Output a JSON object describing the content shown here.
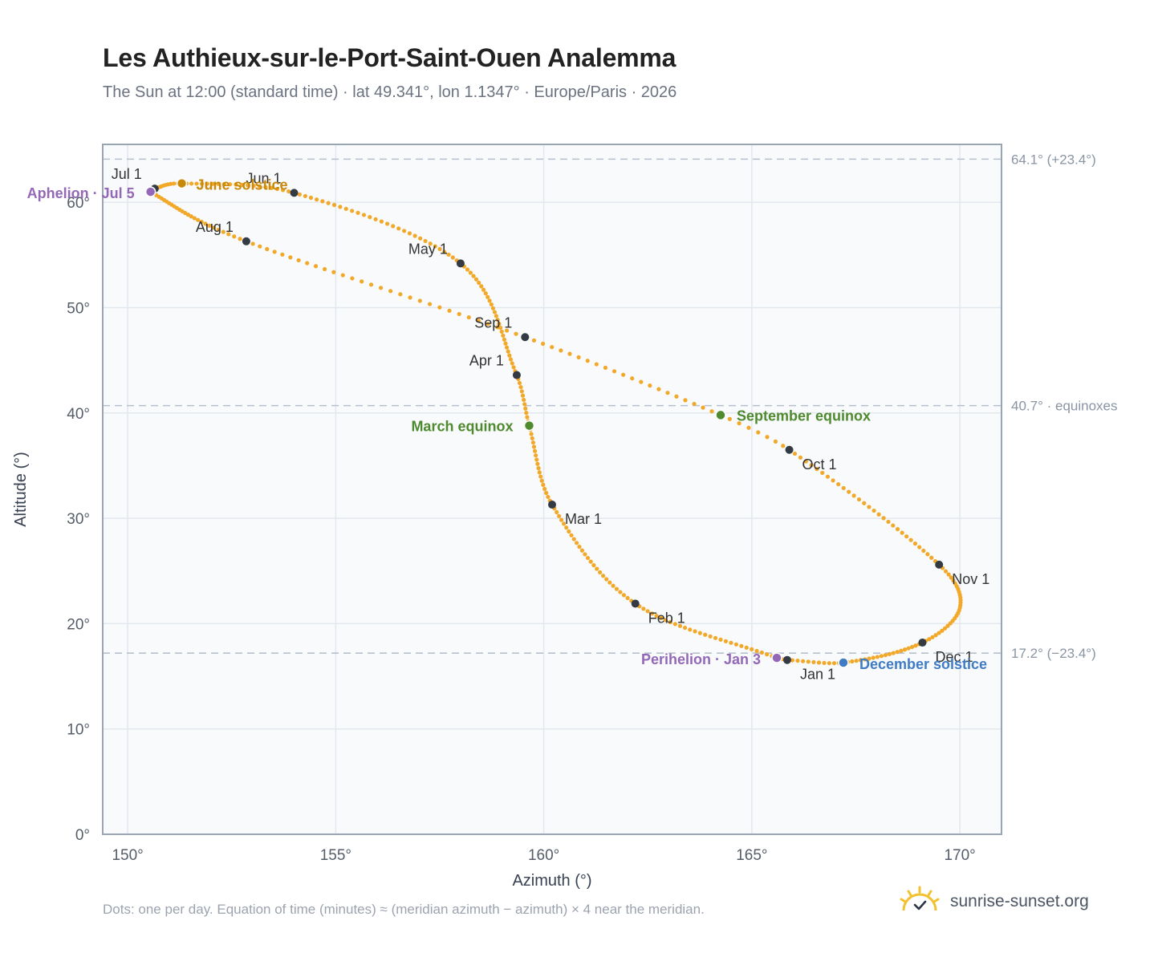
{
  "header": {
    "title": "Les Authieux-sur-le-Port-Saint-Ouen Analemma",
    "subtitle": "The Sun at 12:00 (standard time) · lat 49.341°, lon 1.1347° · Europe/Paris · 2026"
  },
  "footer": {
    "note": "Dots: one per day. Equation of time (minutes) ≈ (meridian azimuth − azimuth) × 4 near the meridian.",
    "brand": "sunrise-sunset.org",
    "brand_icon": "sun-logo-icon"
  },
  "colors": {
    "curve": "#f2a828",
    "month_dot": "#333a44",
    "june": "#c98a0c",
    "equinox": "#4f8a2f",
    "december": "#3f7cc4",
    "apsis": "#9368b7",
    "ref_line": "#b5c0cf",
    "frame": "#9aa5b4",
    "plot_bg": "#f8fafc"
  },
  "chart_data": {
    "type": "scatter",
    "xlabel": "Azimuth (°)",
    "ylabel": "Altitude (°)",
    "xlim": [
      149.4,
      171.0
    ],
    "ylim": [
      0,
      65.5
    ],
    "xticks": [
      150,
      155,
      160,
      165,
      170
    ],
    "yticks": [
      0,
      10,
      20,
      30,
      40,
      50,
      60
    ],
    "xtick_labels": [
      "150°",
      "155°",
      "160°",
      "165°",
      "170°"
    ],
    "ytick_labels": [
      "0°",
      "10°",
      "20°",
      "30°",
      "40°",
      "50°",
      "60°"
    ],
    "grid": true,
    "reference_lines": [
      {
        "y": 64.1,
        "label": "64.1° (+23.4°)"
      },
      {
        "y": 40.7,
        "label": "40.7° · equinoxes"
      },
      {
        "y": 17.2,
        "label": "17.2° (−23.4°)"
      }
    ],
    "month_points": [
      {
        "label": "Jan 1",
        "azimuth": 165.85,
        "altitude": 16.55
      },
      {
        "label": "Feb 1",
        "azimuth": 162.2,
        "altitude": 21.9
      },
      {
        "label": "Mar 1",
        "azimuth": 160.2,
        "altitude": 31.3
      },
      {
        "label": "Apr 1",
        "azimuth": 159.35,
        "altitude": 43.6
      },
      {
        "label": "May 1",
        "azimuth": 158.0,
        "altitude": 54.2
      },
      {
        "label": "Jun 1",
        "azimuth": 154.0,
        "altitude": 60.9
      },
      {
        "label": "Jul 1",
        "azimuth": 150.65,
        "altitude": 61.3
      },
      {
        "label": "Aug 1",
        "azimuth": 152.85,
        "altitude": 56.3
      },
      {
        "label": "Sep 1",
        "azimuth": 159.55,
        "altitude": 47.2
      },
      {
        "label": "Oct 1",
        "azimuth": 165.9,
        "altitude": 36.5
      },
      {
        "label": "Nov 1",
        "azimuth": 169.5,
        "altitude": 25.6
      },
      {
        "label": "Dec 1",
        "azimuth": 169.1,
        "altitude": 18.2
      }
    ],
    "events": [
      {
        "label": "June solstice",
        "azimuth": 151.3,
        "altitude": 61.8,
        "color_key": "june"
      },
      {
        "label": "March equinox",
        "azimuth": 159.65,
        "altitude": 38.8,
        "color_key": "equinox"
      },
      {
        "label": "September equinox",
        "azimuth": 164.25,
        "altitude": 39.8,
        "color_key": "equinox"
      },
      {
        "label": "December solstice",
        "azimuth": 167.2,
        "altitude": 16.3,
        "color_key": "december"
      },
      {
        "label": "Aphelion · Jul 5",
        "azimuth": 150.55,
        "altitude": 61.0,
        "color_key": "apsis"
      },
      {
        "label": "Perihelion · Jan 3",
        "azimuth": 165.6,
        "altitude": 16.75,
        "color_key": "apsis"
      }
    ],
    "curve_anchors": [
      {
        "day": 1,
        "azimuth": 165.85,
        "altitude": 16.55
      },
      {
        "day": 3,
        "azimuth": 165.6,
        "altitude": 16.75
      },
      {
        "day": 32,
        "azimuth": 162.2,
        "altitude": 21.9
      },
      {
        "day": 60,
        "azimuth": 160.2,
        "altitude": 31.3
      },
      {
        "day": 79,
        "azimuth": 159.65,
        "altitude": 38.8
      },
      {
        "day": 91,
        "azimuth": 159.35,
        "altitude": 43.6
      },
      {
        "day": 121,
        "azimuth": 158.0,
        "altitude": 54.2
      },
      {
        "day": 152,
        "azimuth": 154.0,
        "altitude": 60.9
      },
      {
        "day": 172,
        "azimuth": 151.3,
        "altitude": 61.8
      },
      {
        "day": 182,
        "azimuth": 150.65,
        "altitude": 61.3
      },
      {
        "day": 186,
        "azimuth": 150.55,
        "altitude": 61.0
      },
      {
        "day": 213,
        "azimuth": 152.85,
        "altitude": 56.3
      },
      {
        "day": 244,
        "azimuth": 159.55,
        "altitude": 47.2
      },
      {
        "day": 266,
        "azimuth": 164.25,
        "altitude": 39.8
      },
      {
        "day": 274,
        "azimuth": 165.9,
        "altitude": 36.5
      },
      {
        "day": 305,
        "azimuth": 169.5,
        "altitude": 25.6
      },
      {
        "day": 320,
        "azimuth": 170.0,
        "altitude": 21.5
      },
      {
        "day": 335,
        "azimuth": 169.1,
        "altitude": 18.2
      },
      {
        "day": 355,
        "azimuth": 167.2,
        "altitude": 16.3
      },
      {
        "day": 366,
        "azimuth": 165.85,
        "altitude": 16.55
      }
    ]
  }
}
